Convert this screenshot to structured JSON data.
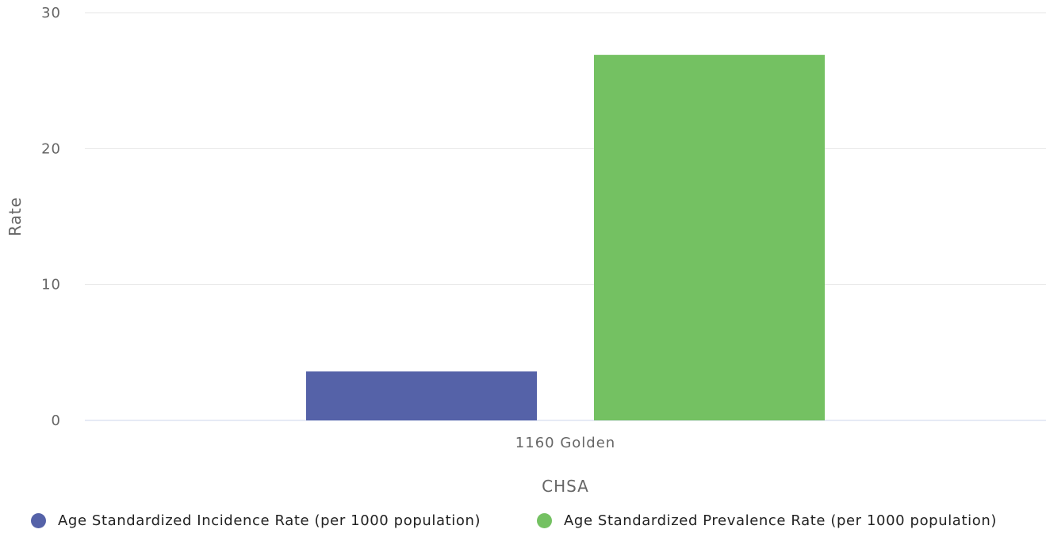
{
  "chart_data": {
    "type": "bar",
    "categories": [
      "1160 Golden"
    ],
    "series": [
      {
        "name": "Age Standardized Incidence Rate (per 1000 population)",
        "values": [
          3.6
        ],
        "color": "#5562a8"
      },
      {
        "name": "Age Standardized Prevalence Rate (per 1000 population)",
        "values": [
          26.9
        ],
        "color": "#74c162"
      }
    ],
    "title": "",
    "xlabel": "CHSA",
    "ylabel": "Rate",
    "ylim": [
      0,
      30
    ],
    "yticks": [
      0,
      10,
      20,
      30
    ],
    "grid": true,
    "legend_position": "bottom"
  }
}
